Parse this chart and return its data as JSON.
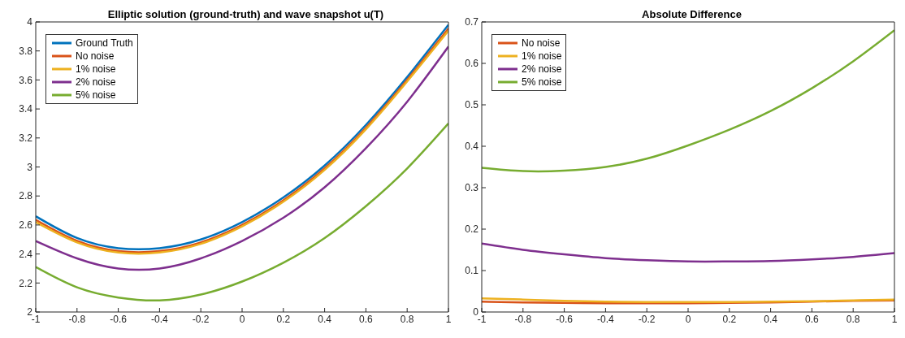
{
  "chart_data": [
    {
      "type": "line",
      "title": "Elliptic solution (ground-truth) and wave snapshot u(T)",
      "x": [
        -1,
        -0.8,
        -0.6,
        -0.4,
        -0.2,
        0,
        0.2,
        0.4,
        0.6,
        0.8,
        1
      ],
      "xlim": [
        -1,
        1
      ],
      "xticks": [
        -1,
        -0.8,
        -0.6,
        -0.4,
        -0.2,
        0,
        0.2,
        0.4,
        0.6,
        0.8,
        1
      ],
      "ylim": [
        2,
        4
      ],
      "yticks": [
        2,
        2.2,
        2.4,
        2.6,
        2.8,
        3,
        3.2,
        3.4,
        3.6,
        3.8,
        4
      ],
      "legend": "top left",
      "series": [
        {
          "name": "Ground Truth",
          "color": "#0072bd",
          "values": [
            2.66,
            2.51,
            2.44,
            2.44,
            2.5,
            2.62,
            2.79,
            3.01,
            3.29,
            3.62,
            3.98
          ]
        },
        {
          "name": "No noise",
          "color": "#d95319",
          "values": [
            2.635,
            2.49,
            2.42,
            2.42,
            2.48,
            2.6,
            2.77,
            2.99,
            3.27,
            3.6,
            3.955
          ]
        },
        {
          "name": "1% noise",
          "color": "#edb120",
          "values": [
            2.62,
            2.48,
            2.41,
            2.41,
            2.47,
            2.59,
            2.76,
            2.98,
            3.26,
            3.59,
            3.94
          ]
        },
        {
          "name": "2% noise",
          "color": "#7e2f8e",
          "values": [
            2.49,
            2.37,
            2.3,
            2.3,
            2.37,
            2.49,
            2.65,
            2.86,
            3.13,
            3.45,
            3.83
          ]
        },
        {
          "name": "5% noise",
          "color": "#77ac30",
          "values": [
            2.31,
            2.17,
            2.1,
            2.08,
            2.12,
            2.21,
            2.34,
            2.51,
            2.73,
            2.99,
            3.3
          ]
        }
      ]
    },
    {
      "type": "line",
      "title": "Absolute Difference",
      "x": [
        -1,
        -0.8,
        -0.6,
        -0.4,
        -0.2,
        0,
        0.2,
        0.4,
        0.6,
        0.8,
        1
      ],
      "xlim": [
        -1,
        1
      ],
      "xticks": [
        -1,
        -0.8,
        -0.6,
        -0.4,
        -0.2,
        0,
        0.2,
        0.4,
        0.6,
        0.8,
        1
      ],
      "ylim": [
        0,
        0.7
      ],
      "yticks": [
        0,
        0.1,
        0.2,
        0.3,
        0.4,
        0.5,
        0.6,
        0.7
      ],
      "legend": "top left",
      "series": [
        {
          "name": "No noise",
          "color": "#d95319",
          "values": [
            0.025,
            0.023,
            0.022,
            0.021,
            0.021,
            0.021,
            0.022,
            0.023,
            0.025,
            0.027,
            0.028
          ]
        },
        {
          "name": "1% noise",
          "color": "#edb120",
          "values": [
            0.033,
            0.03,
            0.027,
            0.025,
            0.024,
            0.024,
            0.024,
            0.025,
            0.026,
            0.028,
            0.03
          ]
        },
        {
          "name": "2% noise",
          "color": "#7e2f8e",
          "values": [
            0.165,
            0.15,
            0.139,
            0.13,
            0.125,
            0.122,
            0.122,
            0.123,
            0.127,
            0.133,
            0.142
          ]
        },
        {
          "name": "5% noise",
          "color": "#77ac30",
          "values": [
            0.348,
            0.34,
            0.341,
            0.35,
            0.37,
            0.402,
            0.44,
            0.485,
            0.54,
            0.605,
            0.68
          ]
        }
      ]
    }
  ]
}
